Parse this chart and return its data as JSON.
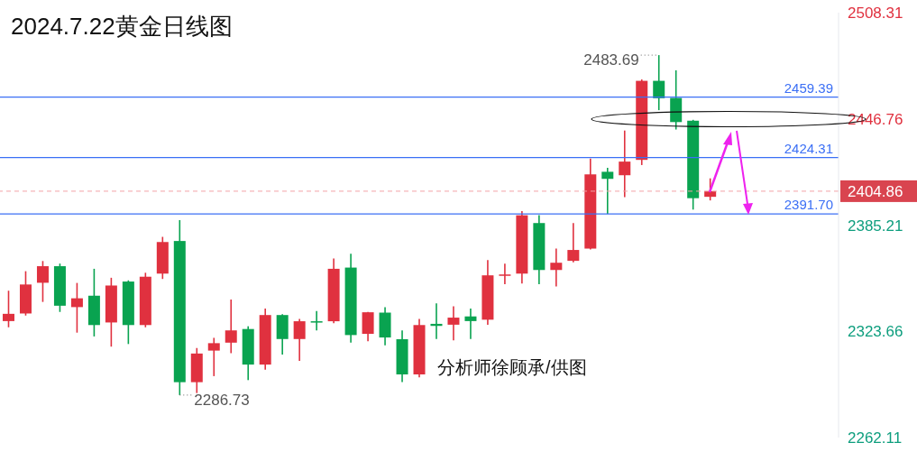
{
  "chart_data": {
    "type": "candlestick",
    "title": "2024.7.22黄金日线图",
    "categories": [
      null,
      null,
      null,
      null,
      null,
      null,
      null,
      null,
      null,
      null,
      null,
      null,
      null,
      null,
      null,
      null,
      null,
      null,
      null,
      null,
      null,
      null,
      null,
      null,
      null,
      null,
      null,
      null,
      null,
      null,
      null,
      null,
      null,
      null,
      null,
      null,
      null,
      null,
      null,
      null,
      null,
      null,
      null,
      null,
      null,
      null,
      null,
      null,
      null
    ],
    "ohlc": [
      [
        2329.6,
        2347.2,
        2326.0,
        2333.8
      ],
      [
        2334.0,
        2358.5,
        2332.8,
        2350.8
      ],
      [
        2351.8,
        2364.4,
        2340.7,
        2361.4
      ],
      [
        2361.4,
        2362.9,
        2334.9,
        2338.5
      ],
      [
        2337.7,
        2351.7,
        2322.9,
        2342.8
      ],
      [
        2344.3,
        2359.9,
        2320.7,
        2327.3
      ],
      [
        2328.8,
        2354.7,
        2314.8,
        2350.2
      ],
      [
        2352.5,
        2353.2,
        2316.3,
        2327.3
      ],
      [
        2327.3,
        2357.6,
        2326.0,
        2355.3
      ],
      [
        2357.1,
        2378.4,
        2354.0,
        2375.4
      ],
      [
        2376.0,
        2388.1,
        2286.73,
        2294.2
      ],
      [
        2294.2,
        2314.0,
        2287.9,
        2310.8
      ],
      [
        2312.5,
        2319.9,
        2297.7,
        2316.8
      ],
      [
        2317.1,
        2342.1,
        2311.0,
        2324.2
      ],
      [
        2325.0,
        2326.6,
        2295.4,
        2304.4
      ],
      [
        2304.4,
        2336.9,
        2301.4,
        2333.1
      ],
      [
        2333.1,
        2333.6,
        2310.2,
        2319.2
      ],
      [
        2319.2,
        2330.8,
        2306.6,
        2329.5
      ],
      [
        2329.5,
        2335.4,
        2324.2,
        2328.8
      ],
      [
        2329.5,
        2365.9,
        2328.3,
        2359.9
      ],
      [
        2360.6,
        2368.6,
        2317.1,
        2321.5
      ],
      [
        2322.2,
        2334.9,
        2317.9,
        2334.7
      ],
      [
        2334.5,
        2337.7,
        2315.5,
        2320.1
      ],
      [
        2319.1,
        2324.2,
        2294.2,
        2298.7
      ],
      [
        2298.7,
        2330.9,
        2297.0,
        2327.3
      ],
      [
        2328.0,
        2339.8,
        2319.2,
        2326.8
      ],
      [
        2327.5,
        2338.2,
        2318.4,
        2331.6
      ],
      [
        2332.3,
        2336.9,
        2319.2,
        2329.6
      ],
      [
        2330.4,
        2364.9,
        2327.5,
        2356.1
      ],
      [
        2356.1,
        2362.9,
        2351.0,
        2356.6
      ],
      [
        2357.1,
        2393.3,
        2351.3,
        2390.9
      ],
      [
        2386.4,
        2390.9,
        2351.0,
        2359.2
      ],
      [
        2359.2,
        2371.6,
        2349.7,
        2363.4
      ],
      [
        2364.5,
        2386.4,
        2363.7,
        2370.8
      ],
      [
        2371.6,
        2423.8,
        2371.1,
        2414.6
      ],
      [
        2416.1,
        2418.4,
        2391.7,
        2412.0
      ],
      [
        2414.1,
        2440.0,
        2401.4,
        2422.0
      ],
      [
        2423.0,
        2469.6,
        2420.0,
        2468.8
      ],
      [
        2468.8,
        2483.69,
        2451.8,
        2458.7
      ],
      [
        2458.9,
        2474.9,
        2440.6,
        2444.9
      ],
      [
        2445.7,
        2446.2,
        2394.2,
        2400.8
      ],
      [
        2401.6,
        2412.3,
        2399.5,
        2404.86
      ],
      null,
      null,
      null,
      null,
      null,
      null,
      null
    ],
    "colors": [
      "#e0313f",
      "#e0313f",
      "#e0313f",
      "#09a350",
      "#e0313f",
      "#09a350",
      "#e0313f",
      "#09a350",
      "#e0313f",
      "#e0313f",
      "#09a350",
      "#e0313f",
      "#e0313f",
      "#e0313f",
      "#09a350",
      "#e0313f",
      "#09a350",
      "#e0313f",
      "#09a350",
      "#e0313f",
      "#09a350",
      "#e0313f",
      "#09a350",
      "#09a350",
      "#e0313f",
      "#09a350",
      "#e0313f",
      "#09a350",
      "#e0313f",
      "#e0313f",
      "#e0313f",
      "#09a350",
      "#e0313f",
      "#e0313f",
      "#e0313f",
      "#09a350",
      "#e0313f",
      "#e0313f",
      "#09a350",
      "#09a350",
      "#09a350",
      "#e0313f",
      null,
      null,
      null,
      null,
      null,
      null,
      null
    ],
    "ylim": [
      2262.11,
      2508.31
    ],
    "yticks": [
      2262.11,
      2323.66,
      2385.21,
      2446.76,
      2508.31
    ],
    "ref_lines": [
      {
        "axis": "y",
        "value": 2459.39,
        "label": "2459.39",
        "color": "#3b6ff5",
        "line_style": "solid"
      },
      {
        "axis": "y",
        "value": 2424.31,
        "label": "2424.31",
        "color": "#3b6ff5",
        "line_style": "solid"
      },
      {
        "axis": "y",
        "value": 2391.7,
        "label": "2391.70",
        "color": "#3b6ff5",
        "line_style": "solid"
      },
      {
        "axis": "y",
        "value": 2404.86,
        "label": "2404.86",
        "color": "#f2a3a8",
        "line_style": "dashed"
      }
    ],
    "annotations": [
      "2483.69",
      "2286.73",
      "分析师徐顾承/供图"
    ]
  }
}
